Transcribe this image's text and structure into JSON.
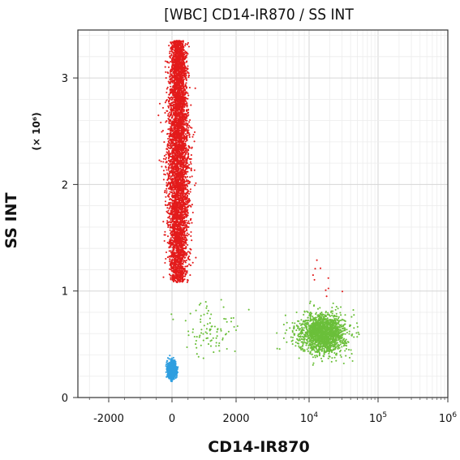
{
  "chart_data": {
    "type": "scatter",
    "title": "[WBC] CD14-IR870 / SS INT",
    "xlabel": "CD14-IR870",
    "ylabel": "SS INT",
    "y_multiplier": "(× 10⁶)",
    "x_scale": "biexponential (linear near 0, logarithmic above 10^4)",
    "xlim": [
      -2800,
      1000000
    ],
    "ylim": [
      0,
      3.45
    ],
    "x_ticks": [
      {
        "value": -2000,
        "label": "-2000"
      },
      {
        "value": 0,
        "label": "0"
      },
      {
        "value": 2000,
        "label": "2000"
      },
      {
        "value": 10000,
        "base": "10",
        "exp": "4"
      },
      {
        "value": 100000,
        "base": "10",
        "exp": "5"
      },
      {
        "value": 1000000,
        "base": "10",
        "exp": "6"
      }
    ],
    "y_ticks": [
      {
        "value": 0,
        "label": "0"
      },
      {
        "value": 1,
        "label": "1"
      },
      {
        "value": 2,
        "label": "2"
      },
      {
        "value": 3,
        "label": "3"
      }
    ],
    "grid": true,
    "series": [
      {
        "color": "#e31b1b",
        "clusters": [
          {
            "x_center": 200,
            "y_center": 2.1,
            "x_spread": 350,
            "y_spread": 0.55,
            "y_range": [
              1.08,
              3.35
            ],
            "approx_count": 5000
          },
          {
            "x_center": 15000,
            "y_center": 1.1,
            "x_spread": 5000,
            "y_spread": 0.12,
            "approx_count": 10
          }
        ]
      },
      {
        "color": "#6bbf3a",
        "clusters": [
          {
            "x_center": 16000,
            "y_center": 0.6,
            "x_spread": 7000,
            "y_spread": 0.09,
            "approx_count": 1800
          },
          {
            "x_center": 1200,
            "y_center": 0.62,
            "x_spread": 900,
            "y_spread": 0.12,
            "approx_count": 90
          }
        ]
      },
      {
        "color": "#2f9fe0",
        "clusters": [
          {
            "x_center": 0,
            "y_center": 0.26,
            "x_spread": 120,
            "y_spread": 0.035,
            "approx_count": 1600
          }
        ]
      }
    ]
  }
}
